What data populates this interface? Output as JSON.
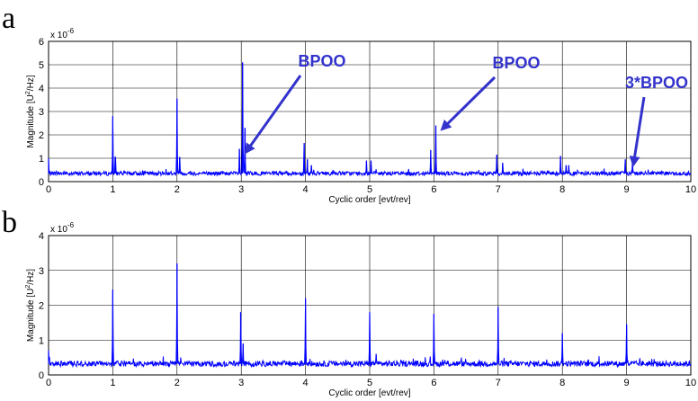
{
  "figure": {
    "panels": [
      {
        "letter": "a",
        "y_exponent": "x 10",
        "y_exponent_power": "-6",
        "xlabel": "Cyclic order [evt/rev]",
        "ylabel": "Magnitude [U",
        "ylabel_sup": "2",
        "ylabel_tail": "/Hz]",
        "x_ticks": [
          "0",
          "1",
          "2",
          "3",
          "4",
          "5",
          "6",
          "7",
          "8",
          "9",
          "10"
        ],
        "y_ticks": [
          "0",
          "1",
          "2",
          "3",
          "4",
          "5",
          "6"
        ],
        "annotations": [
          {
            "text": "BPOO",
            "x": 3.05
          },
          {
            "text": "BPOO",
            "x": 6.1
          },
          {
            "text": "3*BPOO",
            "x": 9.1
          }
        ]
      },
      {
        "letter": "b",
        "y_exponent": "x 10",
        "y_exponent_power": "-6",
        "xlabel": "Cyclic order [evt/rev]",
        "ylabel": "Magnitude [U",
        "ylabel_sup": "2",
        "ylabel_tail": "/Hz]",
        "x_ticks": [
          "0",
          "1",
          "2",
          "3",
          "4",
          "5",
          "6",
          "7",
          "8",
          "9",
          "10"
        ],
        "y_ticks": [
          "0",
          "1",
          "2",
          "3",
          "4"
        ],
        "annotations": []
      }
    ]
  },
  "chart_data": [
    {
      "type": "line",
      "title": "",
      "xlabel": "Cyclic order [evt/rev]",
      "ylabel": "Magnitude [U^2/Hz]",
      "y_scale_factor": "1e-6",
      "xlim": [
        0,
        10
      ],
      "ylim": [
        0,
        6
      ],
      "grid": true,
      "series_color": "#0000ff",
      "annotation_color": "#3333cc",
      "baseline": 0.35,
      "peaks": [
        {
          "x": 0.0,
          "y": 1.0
        },
        {
          "x": 1.0,
          "y": 2.8
        },
        {
          "x": 1.04,
          "y": 1.05
        },
        {
          "x": 2.0,
          "y": 3.55
        },
        {
          "x": 2.04,
          "y": 1.05
        },
        {
          "x": 2.97,
          "y": 1.4
        },
        {
          "x": 3.02,
          "y": 5.1
        },
        {
          "x": 3.06,
          "y": 2.3
        },
        {
          "x": 3.98,
          "y": 1.65
        },
        {
          "x": 4.03,
          "y": 0.95
        },
        {
          "x": 4.09,
          "y": 0.7
        },
        {
          "x": 4.95,
          "y": 0.9
        },
        {
          "x": 5.02,
          "y": 0.9
        },
        {
          "x": 5.95,
          "y": 1.35
        },
        {
          "x": 6.03,
          "y": 2.4
        },
        {
          "x": 6.98,
          "y": 1.15
        },
        {
          "x": 7.07,
          "y": 0.8
        },
        {
          "x": 7.97,
          "y": 1.1
        },
        {
          "x": 8.06,
          "y": 0.7
        },
        {
          "x": 8.1,
          "y": 0.7
        },
        {
          "x": 8.98,
          "y": 0.95
        },
        {
          "x": 9.09,
          "y": 0.85
        }
      ]
    },
    {
      "type": "line",
      "title": "",
      "xlabel": "Cyclic order [evt/rev]",
      "ylabel": "Magnitude [U^2/Hz]",
      "y_scale_factor": "1e-6",
      "xlim": [
        0,
        10
      ],
      "ylim": [
        0,
        4
      ],
      "grid": true,
      "series_color": "#0000ff",
      "baseline": 0.32,
      "peaks": [
        {
          "x": 0.0,
          "y": 0.7
        },
        {
          "x": 1.0,
          "y": 2.45
        },
        {
          "x": 2.0,
          "y": 3.2
        },
        {
          "x": 2.99,
          "y": 1.8
        },
        {
          "x": 3.03,
          "y": 0.9
        },
        {
          "x": 4.0,
          "y": 2.2
        },
        {
          "x": 5.0,
          "y": 1.8
        },
        {
          "x": 5.1,
          "y": 0.6
        },
        {
          "x": 6.0,
          "y": 1.75
        },
        {
          "x": 7.0,
          "y": 1.95
        },
        {
          "x": 8.0,
          "y": 1.2
        },
        {
          "x": 9.0,
          "y": 1.45
        }
      ]
    }
  ]
}
